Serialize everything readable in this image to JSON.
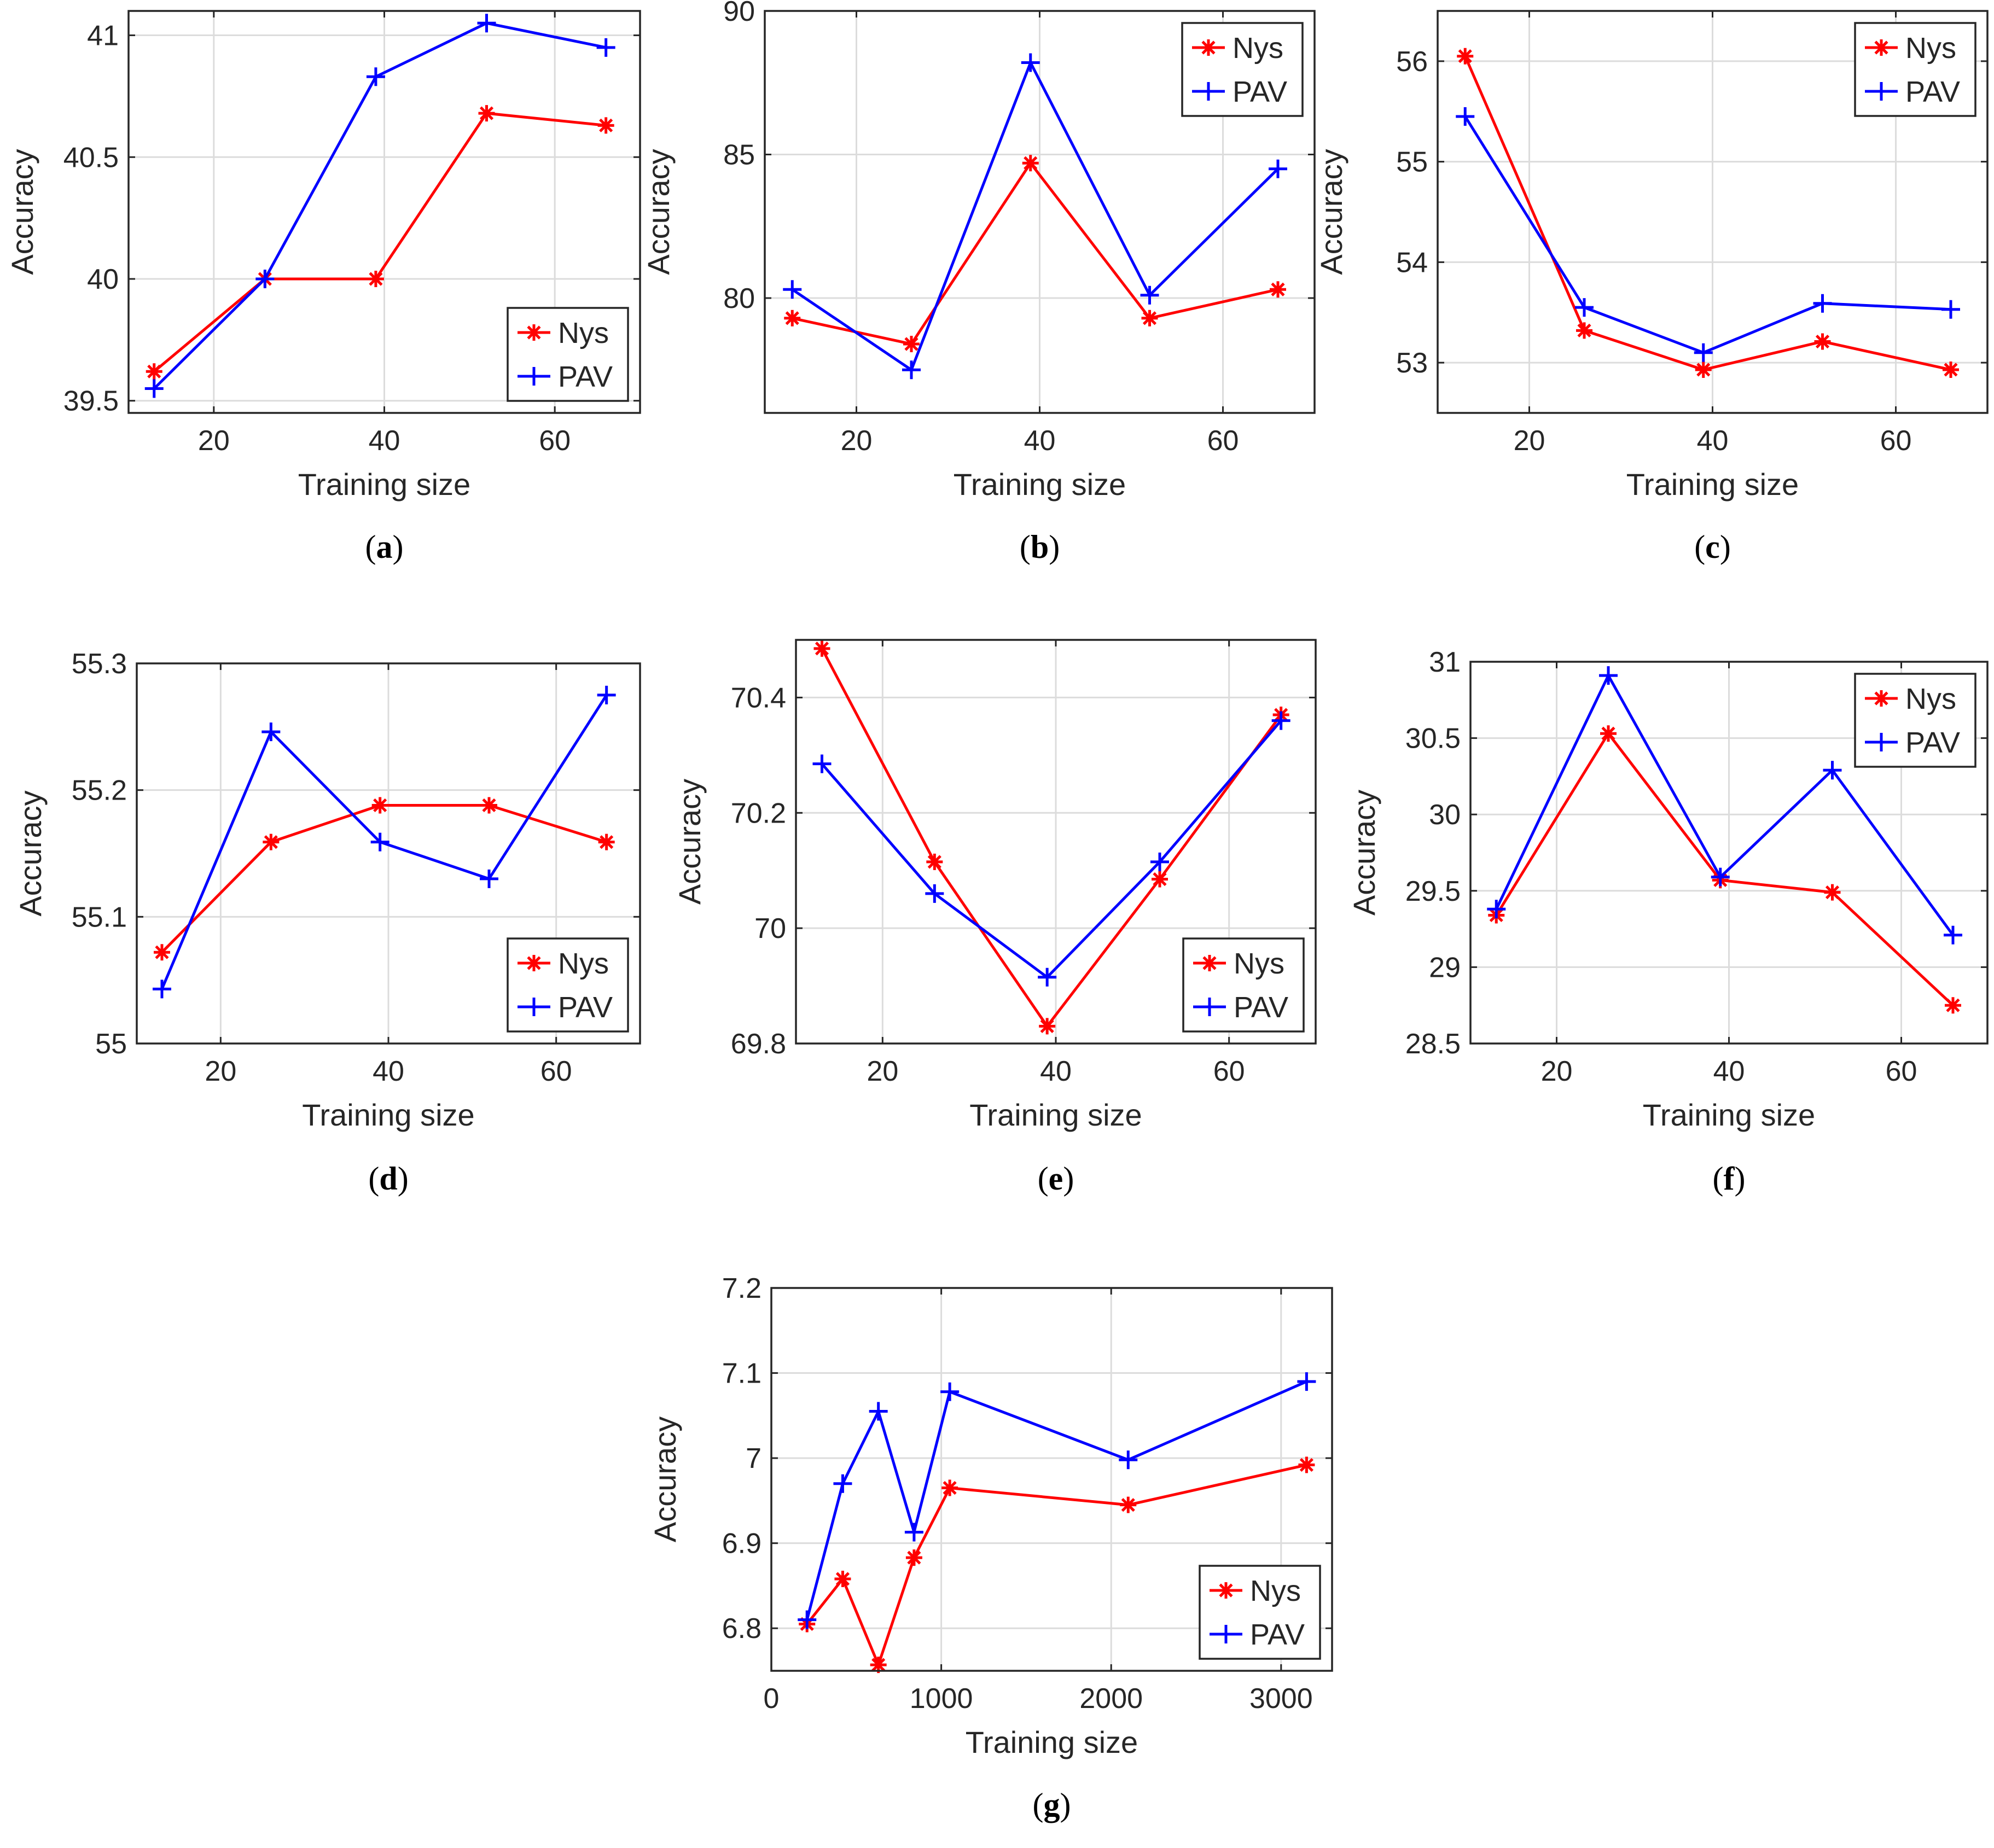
{
  "figure": {
    "panels_count": 7,
    "colors": {
      "nys": "#ff0000",
      "pav": "#0000ff",
      "grid": "#dcdcdc",
      "axes": "#262626"
    }
  },
  "chart_data": [
    {
      "id": "a",
      "caption_letter": "a",
      "type": "line",
      "xlabel": "Training size",
      "ylabel": "Accuracy",
      "xlim": [
        10,
        70
      ],
      "ylim": [
        39.45,
        41.1
      ],
      "xticks": [
        20,
        40,
        60
      ],
      "xtick_labels": [
        "20",
        "40",
        "60"
      ],
      "yticks": [
        39.5,
        40,
        40.5,
        41
      ],
      "ytick_labels": [
        "39.5",
        "40",
        "40.5",
        "41"
      ],
      "grid": true,
      "legend_position": "bottom-right",
      "x": [
        13,
        26,
        39,
        52,
        66
      ],
      "series": [
        {
          "name": "Nys",
          "marker": "asterisk",
          "values": [
            39.62,
            40.0,
            40.0,
            40.68,
            40.63
          ]
        },
        {
          "name": "PAV",
          "marker": "plus",
          "values": [
            39.55,
            40.0,
            40.83,
            41.05,
            40.95
          ]
        }
      ]
    },
    {
      "id": "b",
      "caption_letter": "b",
      "type": "line",
      "xlabel": "Training size",
      "ylabel": "Accuracy",
      "xlim": [
        10,
        70
      ],
      "ylim": [
        76,
        90
      ],
      "xticks": [
        20,
        40,
        60
      ],
      "xtick_labels": [
        "20",
        "40",
        "60"
      ],
      "yticks": [
        80,
        85,
        90
      ],
      "ytick_labels": [
        "80",
        "85",
        "90"
      ],
      "grid": true,
      "legend_position": "top-right",
      "x": [
        13,
        26,
        39,
        52,
        66
      ],
      "series": [
        {
          "name": "Nys",
          "marker": "asterisk",
          "values": [
            79.3,
            78.4,
            84.7,
            79.3,
            80.3
          ]
        },
        {
          "name": "PAV",
          "marker": "plus",
          "values": [
            80.3,
            77.5,
            88.2,
            80.1,
            84.5
          ]
        }
      ]
    },
    {
      "id": "c",
      "caption_letter": "c",
      "type": "line",
      "xlabel": "Training size",
      "ylabel": "Accuracy",
      "xlim": [
        10,
        70
      ],
      "ylim": [
        52.5,
        56.5
      ],
      "xticks": [
        20,
        40,
        60
      ],
      "xtick_labels": [
        "20",
        "40",
        "60"
      ],
      "yticks": [
        53,
        54,
        55,
        56
      ],
      "ytick_labels": [
        "53",
        "54",
        "55",
        "56"
      ],
      "grid": true,
      "legend_position": "top-right",
      "x": [
        13,
        26,
        39,
        52,
        66
      ],
      "series": [
        {
          "name": "Nys",
          "marker": "asterisk",
          "values": [
            56.05,
            53.32,
            52.93,
            53.21,
            52.93
          ]
        },
        {
          "name": "PAV",
          "marker": "plus",
          "values": [
            55.45,
            53.55,
            53.1,
            53.59,
            53.53
          ]
        }
      ]
    },
    {
      "id": "d",
      "caption_letter": "d",
      "type": "line",
      "xlabel": "Training size",
      "ylabel": "Accuracy",
      "xlim": [
        10,
        70
      ],
      "ylim": [
        55.0,
        55.3
      ],
      "xticks": [
        20,
        40,
        60
      ],
      "xtick_labels": [
        "20",
        "40",
        "60"
      ],
      "yticks": [
        55.0,
        55.1,
        55.2,
        55.3
      ],
      "ytick_labels": [
        "55",
        "55.1",
        "55.2",
        "55.3"
      ],
      "grid": true,
      "legend_position": "bottom-right",
      "x": [
        13,
        26,
        39,
        52,
        66
      ],
      "series": [
        {
          "name": "Nys",
          "marker": "asterisk",
          "values": [
            55.072,
            55.159,
            55.188,
            55.188,
            55.159
          ]
        },
        {
          "name": "PAV",
          "marker": "plus",
          "values": [
            55.043,
            55.246,
            55.159,
            55.13,
            55.275
          ]
        }
      ]
    },
    {
      "id": "e",
      "caption_letter": "e",
      "type": "line",
      "xlabel": "Training size",
      "ylabel": "Accuracy",
      "xlim": [
        10,
        70
      ],
      "ylim": [
        69.8,
        70.5
      ],
      "xticks": [
        20,
        40,
        60
      ],
      "xtick_labels": [
        "20",
        "40",
        "60"
      ],
      "yticks": [
        69.8,
        70.0,
        70.2,
        70.4
      ],
      "ytick_labels": [
        "69.8",
        "70",
        "70.2",
        "70.4"
      ],
      "grid": true,
      "legend_position": "bottom-right",
      "x": [
        13,
        26,
        39,
        52,
        66
      ],
      "series": [
        {
          "name": "Nys",
          "marker": "asterisk",
          "values": [
            70.485,
            70.115,
            69.83,
            70.085,
            70.37
          ]
        },
        {
          "name": "PAV",
          "marker": "plus",
          "values": [
            70.285,
            70.06,
            69.915,
            70.115,
            70.36
          ]
        }
      ]
    },
    {
      "id": "f",
      "caption_letter": "f",
      "type": "line",
      "xlabel": "Training size",
      "ylabel": "Accuracy",
      "xlim": [
        10,
        70
      ],
      "ylim": [
        28.5,
        31.0
      ],
      "xticks": [
        20,
        40,
        60
      ],
      "xtick_labels": [
        "20",
        "40",
        "60"
      ],
      "yticks": [
        28.5,
        29,
        29.5,
        30,
        30.5,
        31
      ],
      "ytick_labels": [
        "28.5",
        "29",
        "29.5",
        "30",
        "30.5",
        "31"
      ],
      "grid": true,
      "legend_position": "top-right",
      "x": [
        13,
        26,
        39,
        52,
        66
      ],
      "series": [
        {
          "name": "Nys",
          "marker": "asterisk",
          "values": [
            29.34,
            30.53,
            29.57,
            29.49,
            28.75
          ]
        },
        {
          "name": "PAV",
          "marker": "plus",
          "values": [
            29.38,
            30.91,
            29.59,
            30.29,
            29.21
          ]
        }
      ]
    },
    {
      "id": "g",
      "caption_letter": "g",
      "type": "line",
      "xlabel": "Training size",
      "ylabel": "Accuracy",
      "xlim": [
        0,
        3300
      ],
      "ylim": [
        6.75,
        7.2
      ],
      "xticks": [
        0,
        1000,
        2000,
        3000
      ],
      "xtick_labels": [
        "0",
        "1000",
        "2000",
        "3000"
      ],
      "yticks": [
        6.8,
        6.9,
        7.0,
        7.1,
        7.2
      ],
      "ytick_labels": [
        "6.8",
        "6.9",
        "7",
        "7.1",
        "7.2"
      ],
      "grid": true,
      "legend_position": "bottom-right",
      "x": [
        210,
        420,
        630,
        840,
        1050,
        2100,
        3150
      ],
      "series": [
        {
          "name": "Nys",
          "marker": "asterisk",
          "values": [
            6.805,
            6.858,
            6.757,
            6.883,
            6.965,
            6.945,
            6.992
          ]
        },
        {
          "name": "PAV",
          "marker": "plus",
          "values": [
            6.81,
            6.97,
            7.055,
            6.913,
            7.078,
            6.998,
            7.09
          ]
        }
      ]
    }
  ]
}
